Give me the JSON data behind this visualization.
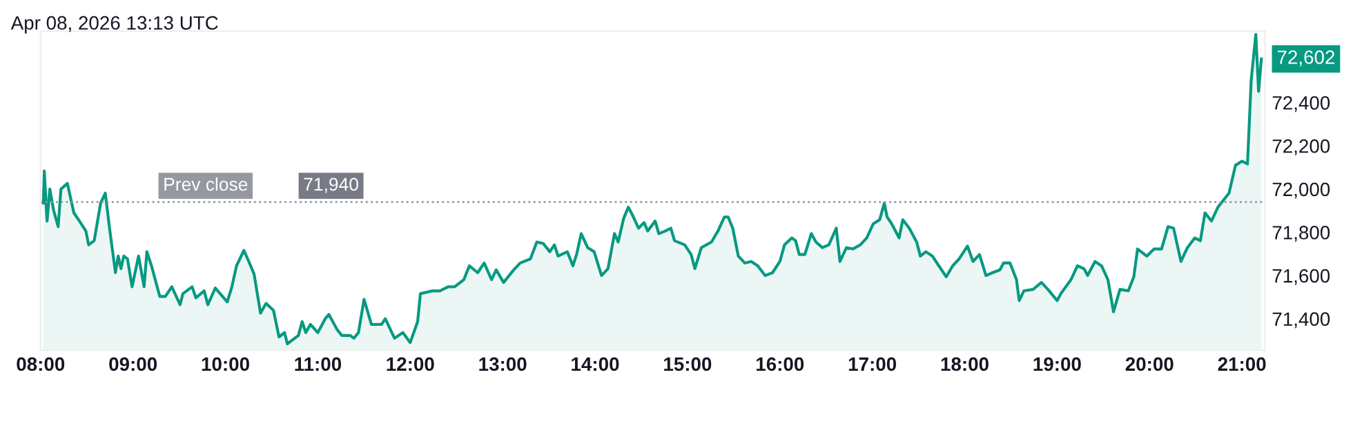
{
  "chart_data": {
    "type": "area",
    "title": "Apr 08, 2026 13:13 UTC",
    "x": [
      8.03,
      8.04,
      8.07,
      8.1,
      8.14,
      8.19,
      8.22,
      8.29,
      8.36,
      8.42,
      8.49,
      8.52,
      8.58,
      8.65,
      8.7,
      8.75,
      8.81,
      8.84,
      8.87,
      8.9,
      8.94,
      8.99,
      9.06,
      9.12,
      9.15,
      9.2,
      9.29,
      9.35,
      9.42,
      9.51,
      9.54,
      9.64,
      9.68,
      9.77,
      9.81,
      9.89,
      10.02,
      10.07,
      10.12,
      10.2,
      10.26,
      10.31,
      10.38,
      10.44,
      10.52,
      10.58,
      10.64,
      10.67,
      10.79,
      10.83,
      10.87,
      10.92,
      11.0,
      11.08,
      11.12,
      11.21,
      11.26,
      11.35,
      11.39,
      11.44,
      11.5,
      11.58,
      11.69,
      11.73,
      11.83,
      11.92,
      12.0,
      12.08,
      12.11,
      12.24,
      12.32,
      12.41,
      12.48,
      12.58,
      12.64,
      12.73,
      12.8,
      12.88,
      12.93,
      13.01,
      13.12,
      13.19,
      13.3,
      13.37,
      13.44,
      13.51,
      13.56,
      13.6,
      13.7,
      13.76,
      13.8,
      13.85,
      13.92,
      13.99,
      14.07,
      14.14,
      14.21,
      14.25,
      14.31,
      14.36,
      14.4,
      14.47,
      14.53,
      14.57,
      14.65,
      14.69,
      14.76,
      14.82,
      14.86,
      14.97,
      15.04,
      15.08,
      15.15,
      15.26,
      15.33,
      15.4,
      15.44,
      15.49,
      15.55,
      15.62,
      15.69,
      15.76,
      15.84,
      15.92,
      16.0,
      16.05,
      16.13,
      16.17,
      16.21,
      16.27,
      16.34,
      16.39,
      16.46,
      16.53,
      16.61,
      16.65,
      16.72,
      16.79,
      16.87,
      16.94,
      17.01,
      17.08,
      17.13,
      17.16,
      17.21,
      17.29,
      17.33,
      17.4,
      17.48,
      17.52,
      17.58,
      17.65,
      17.72,
      17.8,
      17.87,
      17.94,
      18.03,
      18.09,
      18.16,
      18.23,
      18.3,
      18.38,
      18.42,
      18.49,
      18.56,
      18.59,
      18.64,
      18.74,
      18.83,
      18.9,
      19.0,
      19.04,
      19.15,
      19.22,
      19.29,
      19.33,
      19.41,
      19.48,
      19.55,
      19.61,
      19.68,
      19.77,
      19.83,
      19.87,
      19.97,
      20.05,
      20.13,
      20.2,
      20.26,
      20.34,
      20.41,
      20.49,
      20.55,
      20.6,
      20.67,
      20.74,
      20.86,
      20.93,
      21.0,
      21.06,
      21.1,
      21.15,
      21.18,
      21.21
    ],
    "series": [
      {
        "color": "#089981",
        "values": [
          71935,
          72084,
          71852,
          72000,
          71903,
          71826,
          72000,
          72026,
          71890,
          71852,
          71806,
          71742,
          71761,
          71935,
          71981,
          71806,
          71613,
          71690,
          71632,
          71690,
          71677,
          71548,
          71690,
          71548,
          71710,
          71645,
          71503,
          71503,
          71548,
          71465,
          71516,
          71548,
          71497,
          71529,
          71465,
          71542,
          71478,
          71548,
          71645,
          71716,
          71658,
          71607,
          71426,
          71471,
          71439,
          71316,
          71336,
          71284,
          71323,
          71387,
          71336,
          71374,
          71336,
          71400,
          71420,
          71349,
          71323,
          71323,
          71310,
          71336,
          71490,
          71374,
          71374,
          71400,
          71310,
          71336,
          71290,
          71387,
          71516,
          71529,
          71529,
          71548,
          71548,
          71581,
          71645,
          71613,
          71658,
          71581,
          71626,
          71568,
          71626,
          71658,
          71677,
          71755,
          71748,
          71710,
          71742,
          71690,
          71710,
          71645,
          71697,
          71794,
          71729,
          71710,
          71600,
          71632,
          71794,
          71755,
          71865,
          71916,
          71884,
          71819,
          71845,
          71806,
          71852,
          71794,
          71806,
          71819,
          71761,
          71742,
          71697,
          71632,
          71729,
          71755,
          71806,
          71871,
          71871,
          71819,
          71690,
          71658,
          71665,
          71645,
          71600,
          71613,
          71665,
          71742,
          71774,
          71761,
          71697,
          71697,
          71794,
          71755,
          71729,
          71742,
          71819,
          71665,
          71729,
          71723,
          71742,
          71774,
          71839,
          71858,
          71935,
          71871,
          71839,
          71774,
          71858,
          71819,
          71755,
          71690,
          71710,
          71690,
          71645,
          71594,
          71645,
          71677,
          71736,
          71665,
          71697,
          71600,
          71613,
          71626,
          71658,
          71658,
          71581,
          71484,
          71529,
          71536,
          71568,
          71536,
          71484,
          71516,
          71581,
          71645,
          71632,
          71600,
          71665,
          71645,
          71581,
          71432,
          71536,
          71529,
          71594,
          71723,
          71690,
          71723,
          71723,
          71826,
          71819,
          71665,
          71729,
          71774,
          71761,
          71890,
          71852,
          71916,
          71981,
          72110,
          72129,
          72116,
          72503,
          72715,
          72452,
          72602
        ]
      }
    ],
    "xlim": [
      8.0,
      21.25
    ],
    "xticks": [
      {
        "value": 8,
        "label": "08:00"
      },
      {
        "value": 9,
        "label": "09:00"
      },
      {
        "value": 10,
        "label": "10:00"
      },
      {
        "value": 11,
        "label": "11:00"
      },
      {
        "value": 12,
        "label": "12:00"
      },
      {
        "value": 13,
        "label": "13:00"
      },
      {
        "value": 14,
        "label": "14:00"
      },
      {
        "value": 15,
        "label": "15:00"
      },
      {
        "value": 16,
        "label": "16:00"
      },
      {
        "value": 17,
        "label": "17:00"
      },
      {
        "value": 18,
        "label": "18:00"
      },
      {
        "value": 19,
        "label": "19:00"
      },
      {
        "value": 20,
        "label": "20:00"
      },
      {
        "value": 21,
        "label": "21:00"
      }
    ],
    "ylim": [
      71255,
      72730
    ],
    "yticks": [
      {
        "value": 71400,
        "label": "71,400"
      },
      {
        "value": 71600,
        "label": "71,600"
      },
      {
        "value": 71800,
        "label": "71,800"
      },
      {
        "value": 72000,
        "label": "72,000"
      },
      {
        "value": 72200,
        "label": "72,200"
      },
      {
        "value": 72400,
        "label": "72,400"
      }
    ],
    "ref_lines": [
      {
        "axis": "y",
        "value": 71940,
        "label": "Prev close",
        "color": "#9598a1",
        "line_style": "dotted"
      }
    ],
    "annotations": [
      {
        "text": "72,602",
        "x": 21.21,
        "y": 72602
      },
      {
        "text": "71,940",
        "x": 10.8,
        "y": 71940
      }
    ],
    "grid": false,
    "legend": false
  }
}
